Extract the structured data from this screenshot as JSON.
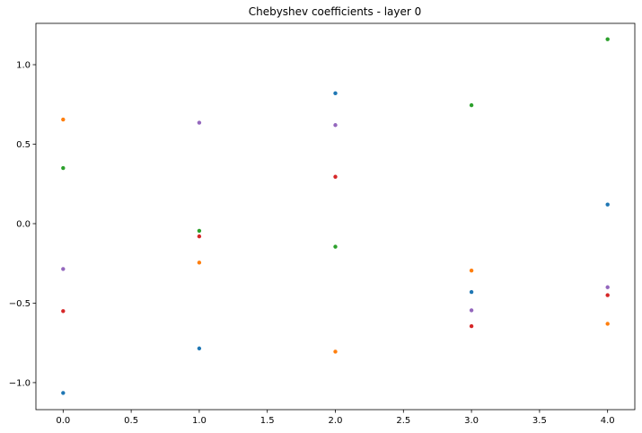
{
  "chart_data": {
    "type": "scatter",
    "title": "Chebyshev coefficients - layer 0",
    "xlabel": "",
    "ylabel": "",
    "xlim": [
      -0.2,
      4.2
    ],
    "ylim": [
      -1.17,
      1.26
    ],
    "xticks": [
      0.0,
      0.5,
      1.0,
      1.5,
      2.0,
      2.5,
      3.0,
      3.5,
      4.0
    ],
    "xtick_labels": [
      "0.0",
      "0.5",
      "1.0",
      "1.5",
      "2.0",
      "2.5",
      "3.0",
      "3.5",
      "4.0"
    ],
    "yticks": [
      -1.0,
      -0.5,
      0.0,
      0.5,
      1.0
    ],
    "ytick_labels": [
      "−1.0",
      "−0.5",
      "0.0",
      "0.5",
      "1.0"
    ],
    "grid": false,
    "legend": "none",
    "series": [
      {
        "color": "#1f77b4",
        "x": [
          0,
          1,
          2,
          3,
          4
        ],
        "y": [
          -1.065,
          -0.785,
          0.82,
          -0.43,
          0.12
        ]
      },
      {
        "color": "#ff7f0e",
        "x": [
          0,
          1,
          2,
          3,
          4
        ],
        "y": [
          0.655,
          -0.245,
          -0.805,
          -0.295,
          -0.63
        ]
      },
      {
        "color": "#2ca02c",
        "x": [
          0,
          1,
          2,
          3,
          4
        ],
        "y": [
          0.35,
          -0.045,
          -0.145,
          0.745,
          1.16
        ]
      },
      {
        "color": "#d62728",
        "x": [
          0,
          1,
          2,
          3,
          4
        ],
        "y": [
          -0.55,
          -0.08,
          0.295,
          -0.645,
          -0.45
        ]
      },
      {
        "color": "#9467bd",
        "x": [
          0,
          1,
          2,
          3,
          4
        ],
        "y": [
          -0.285,
          0.635,
          0.62,
          -0.545,
          -0.4
        ]
      }
    ]
  }
}
